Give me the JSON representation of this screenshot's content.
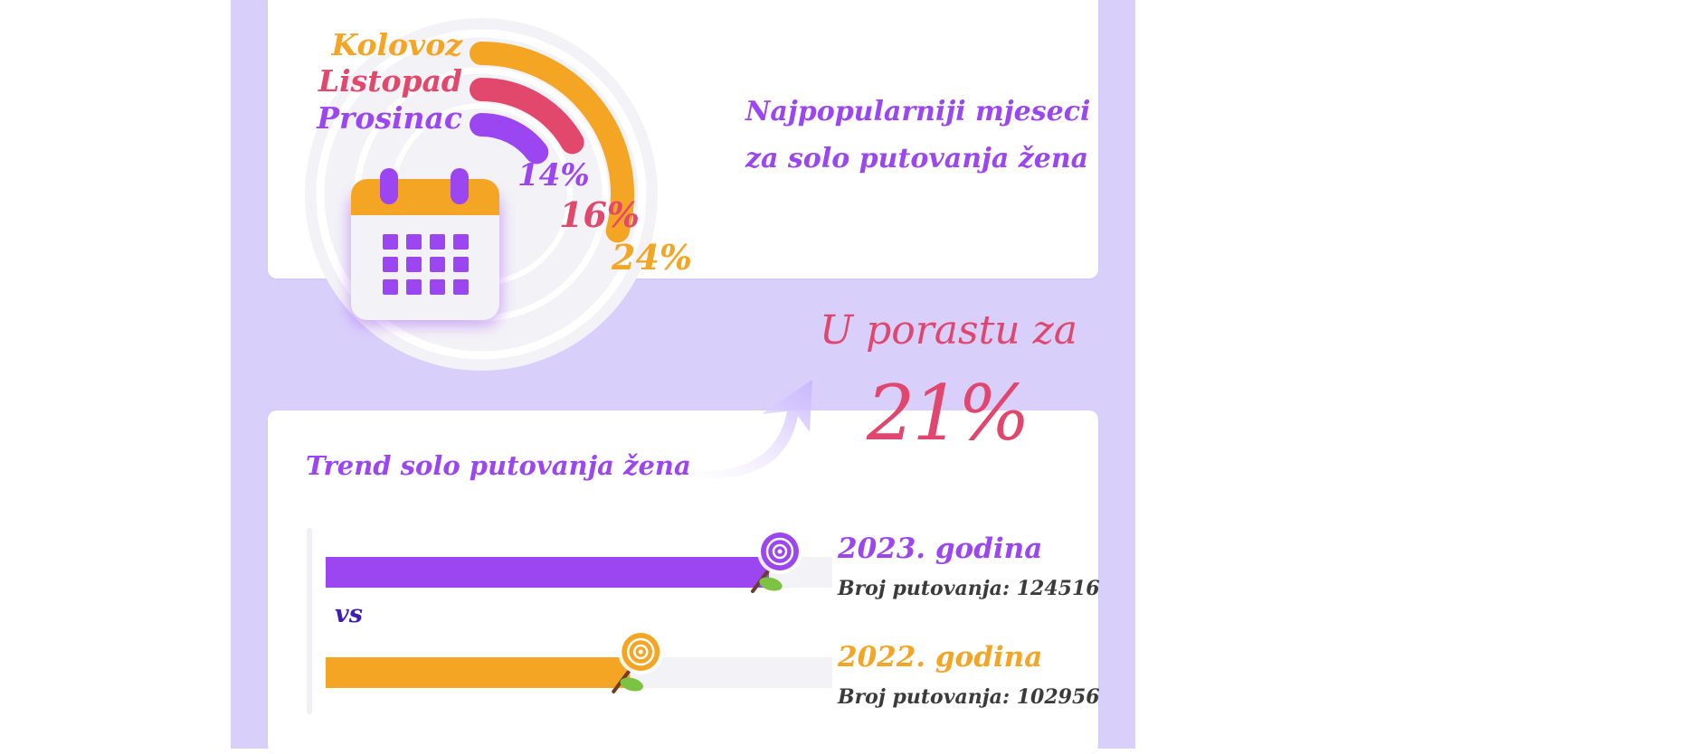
{
  "colors": {
    "panel_bg": "#d9cffb",
    "orange": "#f5a524",
    "pink": "#e2486c",
    "purple": "#9b46f0",
    "navy": "#3d1fb3",
    "track": "#f3f2f7"
  },
  "icons": {
    "calendar": "calendar-icon",
    "arrow": "curved-arrow-icon",
    "rose": "rose-icon"
  },
  "months_chart": {
    "title_line1": "Najpopularniji mjeseci",
    "title_line2": "za solo putovanja žena"
  },
  "growth": {
    "label": "U porastu za",
    "value": "21%"
  },
  "trend": {
    "title": "Trend solo putovanja žena",
    "vs_label": "vs",
    "bars": [
      {
        "year_label": "2023. godina",
        "count_label": "Broj putovanja: 124516"
      },
      {
        "year_label": "2022. godina",
        "count_label": "Broj putovanja: 102956"
      }
    ]
  },
  "chart_data": [
    {
      "type": "radial-bar",
      "title": "Najpopularniji mjeseci za solo putovanja žena",
      "categories": [
        "Kolovoz",
        "Listopad",
        "Prosinac"
      ],
      "values": [
        24,
        16,
        14
      ],
      "value_labels": [
        "24%",
        "16%",
        "14%"
      ],
      "unit": "%",
      "colors": [
        "#f5a524",
        "#e2486c",
        "#9b46f0"
      ]
    },
    {
      "type": "bar",
      "title": "Trend solo putovanja žena",
      "categories": [
        "2023. godina",
        "2022. godina"
      ],
      "values": [
        124516,
        102956
      ],
      "colors": [
        "#9b46f0",
        "#f5a524"
      ],
      "annotation": "U porastu za 21%"
    }
  ]
}
